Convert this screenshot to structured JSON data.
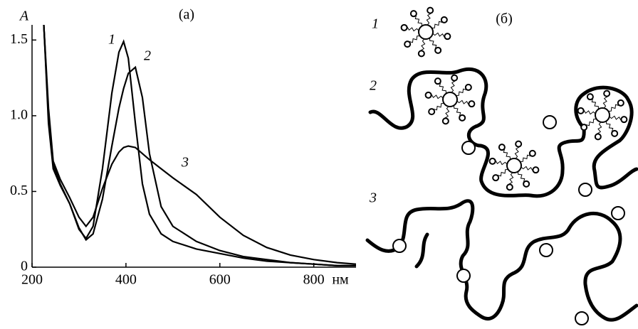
{
  "chart_data": {
    "type": "line",
    "title": "(a)",
    "y_label": "A",
    "x_label": "нм",
    "x": [
      225,
      235,
      245,
      260,
      280,
      300,
      315,
      330,
      350,
      370,
      385,
      395,
      405,
      420,
      435,
      450,
      475,
      500,
      550,
      600,
      650,
      700,
      750,
      800,
      850,
      890
    ],
    "series": [
      {
        "name": "1",
        "color": "#000000",
        "values": [
          1.6,
          1.0,
          0.68,
          0.55,
          0.42,
          0.25,
          0.19,
          0.27,
          0.65,
          1.15,
          1.42,
          1.49,
          1.38,
          0.95,
          0.55,
          0.35,
          0.22,
          0.17,
          0.12,
          0.09,
          0.06,
          0.04,
          0.03,
          0.02,
          0.01,
          0.01
        ]
      },
      {
        "name": "2",
        "color": "#000000",
        "values": [
          1.6,
          0.95,
          0.65,
          0.54,
          0.42,
          0.26,
          0.18,
          0.22,
          0.45,
          0.8,
          1.05,
          1.18,
          1.28,
          1.32,
          1.12,
          0.75,
          0.4,
          0.27,
          0.17,
          0.11,
          0.07,
          0.05,
          0.03,
          0.02,
          0.01,
          0.01
        ]
      },
      {
        "name": "3",
        "color": "#000000",
        "values": [
          1.6,
          1.05,
          0.7,
          0.58,
          0.46,
          0.33,
          0.27,
          0.33,
          0.52,
          0.68,
          0.76,
          0.79,
          0.8,
          0.79,
          0.75,
          0.71,
          0.65,
          0.59,
          0.48,
          0.33,
          0.21,
          0.13,
          0.08,
          0.05,
          0.03,
          0.02
        ]
      }
    ],
    "xlim": [
      200,
      890
    ],
    "ylim": [
      0,
      1.6
    ],
    "xticks": [
      200,
      400,
      600,
      800
    ],
    "yticks": [
      0,
      0.5,
      {
        "value": 1,
        "label": "1.0"
      },
      1.5
    ]
  },
  "diagram": {
    "title": "(б)",
    "labels": [
      "1",
      "2",
      "3"
    ]
  }
}
